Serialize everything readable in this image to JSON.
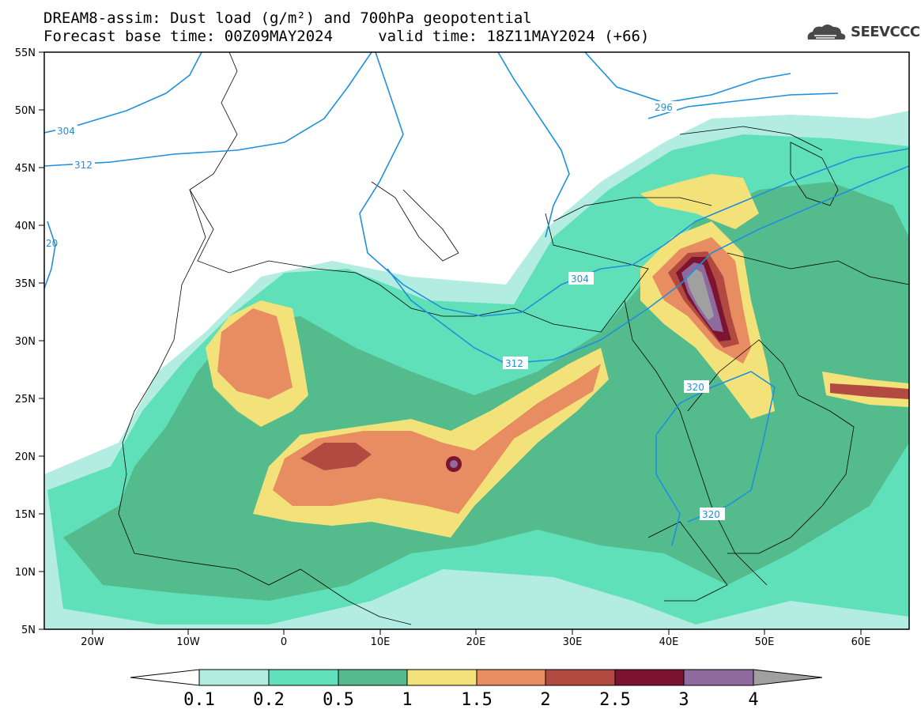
{
  "title": {
    "line1": "DREAM8-assim: Dust load (g/m²) and 700hPa geopotential",
    "line2": "Forecast base time: 00Z09MAY2024     valid time: 18Z11MAY2024 (+66)"
  },
  "logo": {
    "text": "SEEVCCC",
    "icon": "cloud-icon"
  },
  "axes": {
    "lat_ticks": [
      "55N",
      "50N",
      "45N",
      "40N",
      "35N",
      "30N",
      "25N",
      "20N",
      "15N",
      "10N",
      "5N"
    ],
    "lon_ticks": [
      "20W",
      "10W",
      "0",
      "10E",
      "20E",
      "30E",
      "40E",
      "50E",
      "60E"
    ]
  },
  "contour_labels": [
    "304",
    "312",
    "296",
    "20",
    "304",
    "312",
    "320",
    "320"
  ],
  "colorbar": {
    "labels": [
      "0.1",
      "0.2",
      "0.5",
      "1",
      "1.5",
      "2",
      "2.5",
      "3",
      "4"
    ],
    "colors": [
      "#b3ece0",
      "#5fe0b8",
      "#54bb8d",
      "#f3e27a",
      "#e88c62",
      "#b34a41",
      "#7c1430",
      "#8e6a9e",
      "#a0a0a0"
    ]
  },
  "colors": {
    "lowest": "#b3ece0",
    "low": "#5fe0b8",
    "mid": "#54bb8d",
    "yellow": "#f3e27a",
    "orange": "#e88c62",
    "brown": "#b34a41",
    "maroon": "#7c1430",
    "purple": "#8e6a9e",
    "gray": "#a0a0a0",
    "contour": "#1e90dc"
  }
}
